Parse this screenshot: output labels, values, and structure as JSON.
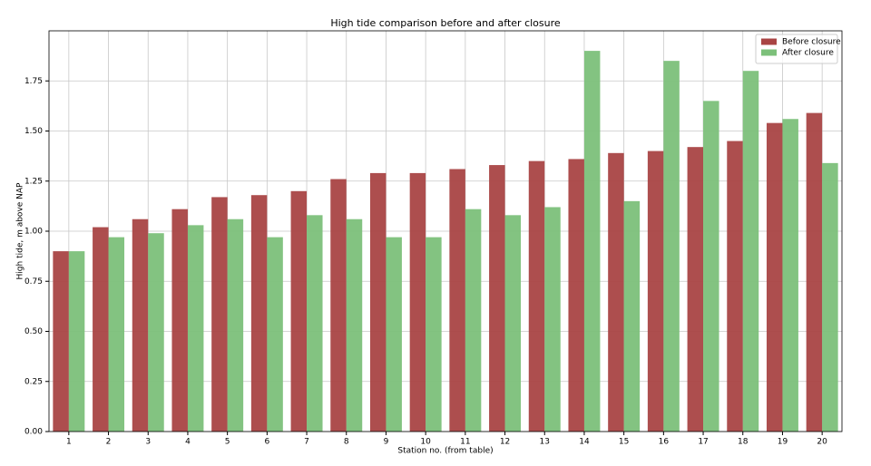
{
  "chart_data": {
    "type": "bar",
    "title": "High tide comparison before and after closure",
    "xlabel": "Station no. (from table)",
    "ylabel": "High tide, m above NAP",
    "categories": [
      "1",
      "2",
      "3",
      "4",
      "5",
      "6",
      "7",
      "8",
      "9",
      "10",
      "11",
      "12",
      "13",
      "14",
      "15",
      "16",
      "17",
      "18",
      "19",
      "20"
    ],
    "series": [
      {
        "name": "Before closure",
        "color": "#a94444",
        "values": [
          0.9,
          1.02,
          1.06,
          1.11,
          1.17,
          1.18,
          1.2,
          1.26,
          1.29,
          1.29,
          1.31,
          1.33,
          1.35,
          1.36,
          1.39,
          1.4,
          1.42,
          1.45,
          1.54,
          1.59
        ]
      },
      {
        "name": "After closure",
        "color": "#7cc07a",
        "values": [
          0.9,
          0.97,
          0.99,
          1.03,
          1.06,
          0.97,
          1.08,
          1.06,
          0.97,
          0.97,
          1.11,
          1.08,
          1.12,
          1.9,
          1.15,
          1.85,
          1.65,
          1.8,
          1.56,
          1.34
        ]
      }
    ],
    "ylim": [
      0,
      2.0
    ],
    "yticks": [
      {
        "value": 0,
        "label": "0.00"
      },
      {
        "value": 0.25,
        "label": "0.25"
      },
      {
        "value": 0.5,
        "label": "0.50"
      },
      {
        "value": 0.75,
        "label": "0.75"
      },
      {
        "value": 1.0,
        "label": "1.00"
      },
      {
        "value": 1.25,
        "label": "1.25"
      },
      {
        "value": 1.5,
        "label": "1.50"
      },
      {
        "value": 1.75,
        "label": "1.75"
      }
    ],
    "grid": true,
    "legend": "upper-right"
  }
}
